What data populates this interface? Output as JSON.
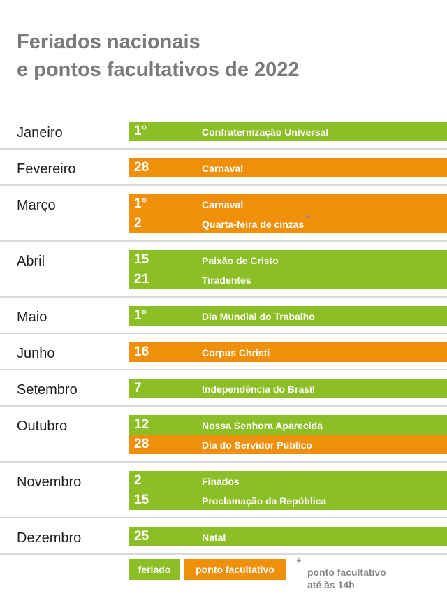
{
  "title": {
    "line1": "Feriados nacionais",
    "line2": "e pontos facultativos de 2022"
  },
  "colors": {
    "feriado": "#8cbf26",
    "ponto_facultativo": "#f0900a"
  },
  "months": [
    {
      "name": "Janeiro",
      "entries": [
        {
          "day": "1°",
          "label": "Confraternização Universal",
          "type": "feriado"
        }
      ]
    },
    {
      "name": "Fevereiro",
      "entries": [
        {
          "day": "28",
          "label": "Carnaval",
          "type": "ponto_facultativo"
        }
      ]
    },
    {
      "name": "Março",
      "entries": [
        {
          "day": "1°",
          "label": "Carnaval",
          "type": "ponto_facultativo"
        },
        {
          "day": "2",
          "label": "Quarta-feira de cinzas",
          "type": "ponto_facultativo",
          "asterisk": "*"
        }
      ]
    },
    {
      "name": "Abril",
      "entries": [
        {
          "day": "15",
          "label": "Paixão de Cristo",
          "type": "feriado"
        },
        {
          "day": "21",
          "label": "Tiradentes",
          "type": "feriado"
        }
      ]
    },
    {
      "name": "Maio",
      "entries": [
        {
          "day": "1°",
          "label": "Dia Mundial do Trabalho",
          "type": "feriado"
        }
      ]
    },
    {
      "name": "Junho",
      "entries": [
        {
          "day": "16",
          "label": "Corpus Christi",
          "type": "ponto_facultativo"
        }
      ]
    },
    {
      "name": "Setembro",
      "entries": [
        {
          "day": "7",
          "label": "Independência do Brasil",
          "type": "feriado"
        }
      ]
    },
    {
      "name": "Outubro",
      "entries": [
        {
          "day": "12",
          "label": "Nossa Senhora Aparecida",
          "type": "feriado"
        },
        {
          "day": "28",
          "label": "Dia do Servidor Público",
          "type": "ponto_facultativo"
        }
      ]
    },
    {
      "name": "Novembro",
      "entries": [
        {
          "day": "2",
          "label": "Finados",
          "type": "feriado"
        },
        {
          "day": "15",
          "label": "Proclamação da República",
          "type": "feriado"
        }
      ]
    },
    {
      "name": "Dezembro",
      "entries": [
        {
          "day": "25",
          "label": "Natal",
          "type": "feriado"
        }
      ]
    }
  ],
  "legend": {
    "feriado": "feriado",
    "ponto_facultativo": "ponto facultativo",
    "asterisk": "*",
    "note_line1": "ponto facultativo",
    "note_line2": "até às 14h"
  }
}
